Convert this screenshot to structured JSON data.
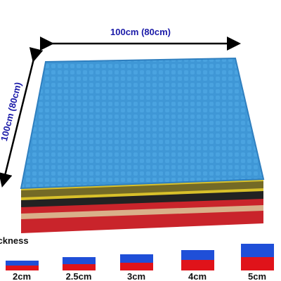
{
  "dimensions": {
    "width": "100cm  (80cm)",
    "depth": "100cm  (80cm)"
  },
  "thickness": {
    "title": "Thickness",
    "options": [
      "2cm",
      "2.5cm",
      "3cm",
      "4cm",
      "5cm"
    ]
  }
}
